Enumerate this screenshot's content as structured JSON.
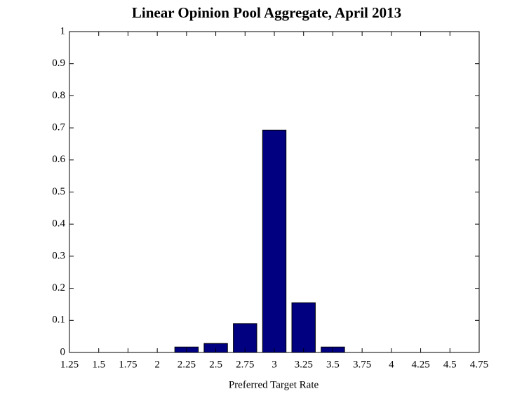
{
  "chart_data": {
    "type": "bar",
    "title": "Linear Opinion Pool Aggregate, April 2013",
    "x_label": "Preferred Target Rate",
    "x": [
      2.25,
      2.5,
      2.75,
      3,
      3.25,
      3.5
    ],
    "values": [
      0.017,
      0.028,
      0.09,
      0.693,
      0.155,
      0.017
    ],
    "color": "#000080",
    "xlim": [
      1.25,
      4.75
    ],
    "xticks": [
      1.25,
      1.5,
      1.75,
      2,
      2.25,
      2.5,
      2.75,
      3,
      3.25,
      3.5,
      3.75,
      4,
      4.25,
      4.5,
      4.75
    ],
    "ylim": [
      0,
      1
    ],
    "yticks": [
      0,
      0.1,
      0.2,
      0.3,
      0.4,
      0.5,
      0.6,
      0.7,
      0.8,
      0.9,
      1
    ],
    "grid": false
  }
}
